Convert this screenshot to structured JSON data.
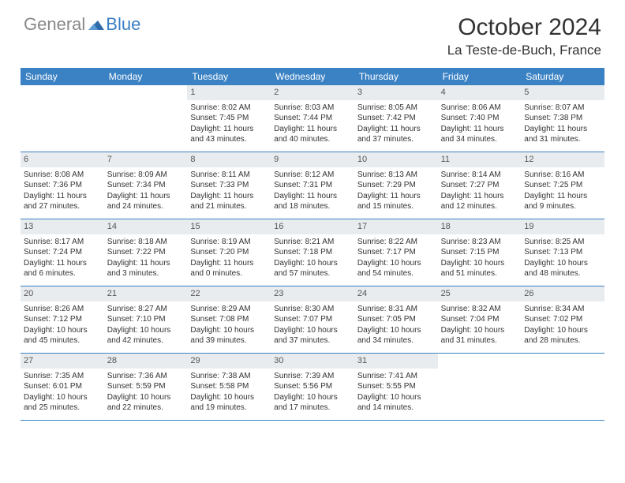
{
  "logo": {
    "general": "General",
    "blue": "Blue"
  },
  "title": "October 2024",
  "location": "La Teste-de-Buch, France",
  "colors": {
    "header_bg": "#3b82c4",
    "header_text": "#ffffff",
    "daynum_bg": "#e9ecef",
    "divider": "#3b82c4",
    "logo_gray": "#888888",
    "logo_blue": "#3b7fc4"
  },
  "weekdays": [
    "Sunday",
    "Monday",
    "Tuesday",
    "Wednesday",
    "Thursday",
    "Friday",
    "Saturday"
  ],
  "weeks": [
    [
      null,
      null,
      {
        "n": "1",
        "sunrise": "Sunrise: 8:02 AM",
        "sunset": "Sunset: 7:45 PM",
        "daylight": "Daylight: 11 hours and 43 minutes."
      },
      {
        "n": "2",
        "sunrise": "Sunrise: 8:03 AM",
        "sunset": "Sunset: 7:44 PM",
        "daylight": "Daylight: 11 hours and 40 minutes."
      },
      {
        "n": "3",
        "sunrise": "Sunrise: 8:05 AM",
        "sunset": "Sunset: 7:42 PM",
        "daylight": "Daylight: 11 hours and 37 minutes."
      },
      {
        "n": "4",
        "sunrise": "Sunrise: 8:06 AM",
        "sunset": "Sunset: 7:40 PM",
        "daylight": "Daylight: 11 hours and 34 minutes."
      },
      {
        "n": "5",
        "sunrise": "Sunrise: 8:07 AM",
        "sunset": "Sunset: 7:38 PM",
        "daylight": "Daylight: 11 hours and 31 minutes."
      }
    ],
    [
      {
        "n": "6",
        "sunrise": "Sunrise: 8:08 AM",
        "sunset": "Sunset: 7:36 PM",
        "daylight": "Daylight: 11 hours and 27 minutes."
      },
      {
        "n": "7",
        "sunrise": "Sunrise: 8:09 AM",
        "sunset": "Sunset: 7:34 PM",
        "daylight": "Daylight: 11 hours and 24 minutes."
      },
      {
        "n": "8",
        "sunrise": "Sunrise: 8:11 AM",
        "sunset": "Sunset: 7:33 PM",
        "daylight": "Daylight: 11 hours and 21 minutes."
      },
      {
        "n": "9",
        "sunrise": "Sunrise: 8:12 AM",
        "sunset": "Sunset: 7:31 PM",
        "daylight": "Daylight: 11 hours and 18 minutes."
      },
      {
        "n": "10",
        "sunrise": "Sunrise: 8:13 AM",
        "sunset": "Sunset: 7:29 PM",
        "daylight": "Daylight: 11 hours and 15 minutes."
      },
      {
        "n": "11",
        "sunrise": "Sunrise: 8:14 AM",
        "sunset": "Sunset: 7:27 PM",
        "daylight": "Daylight: 11 hours and 12 minutes."
      },
      {
        "n": "12",
        "sunrise": "Sunrise: 8:16 AM",
        "sunset": "Sunset: 7:25 PM",
        "daylight": "Daylight: 11 hours and 9 minutes."
      }
    ],
    [
      {
        "n": "13",
        "sunrise": "Sunrise: 8:17 AM",
        "sunset": "Sunset: 7:24 PM",
        "daylight": "Daylight: 11 hours and 6 minutes."
      },
      {
        "n": "14",
        "sunrise": "Sunrise: 8:18 AM",
        "sunset": "Sunset: 7:22 PM",
        "daylight": "Daylight: 11 hours and 3 minutes."
      },
      {
        "n": "15",
        "sunrise": "Sunrise: 8:19 AM",
        "sunset": "Sunset: 7:20 PM",
        "daylight": "Daylight: 11 hours and 0 minutes."
      },
      {
        "n": "16",
        "sunrise": "Sunrise: 8:21 AM",
        "sunset": "Sunset: 7:18 PM",
        "daylight": "Daylight: 10 hours and 57 minutes."
      },
      {
        "n": "17",
        "sunrise": "Sunrise: 8:22 AM",
        "sunset": "Sunset: 7:17 PM",
        "daylight": "Daylight: 10 hours and 54 minutes."
      },
      {
        "n": "18",
        "sunrise": "Sunrise: 8:23 AM",
        "sunset": "Sunset: 7:15 PM",
        "daylight": "Daylight: 10 hours and 51 minutes."
      },
      {
        "n": "19",
        "sunrise": "Sunrise: 8:25 AM",
        "sunset": "Sunset: 7:13 PM",
        "daylight": "Daylight: 10 hours and 48 minutes."
      }
    ],
    [
      {
        "n": "20",
        "sunrise": "Sunrise: 8:26 AM",
        "sunset": "Sunset: 7:12 PM",
        "daylight": "Daylight: 10 hours and 45 minutes."
      },
      {
        "n": "21",
        "sunrise": "Sunrise: 8:27 AM",
        "sunset": "Sunset: 7:10 PM",
        "daylight": "Daylight: 10 hours and 42 minutes."
      },
      {
        "n": "22",
        "sunrise": "Sunrise: 8:29 AM",
        "sunset": "Sunset: 7:08 PM",
        "daylight": "Daylight: 10 hours and 39 minutes."
      },
      {
        "n": "23",
        "sunrise": "Sunrise: 8:30 AM",
        "sunset": "Sunset: 7:07 PM",
        "daylight": "Daylight: 10 hours and 37 minutes."
      },
      {
        "n": "24",
        "sunrise": "Sunrise: 8:31 AM",
        "sunset": "Sunset: 7:05 PM",
        "daylight": "Daylight: 10 hours and 34 minutes."
      },
      {
        "n": "25",
        "sunrise": "Sunrise: 8:32 AM",
        "sunset": "Sunset: 7:04 PM",
        "daylight": "Daylight: 10 hours and 31 minutes."
      },
      {
        "n": "26",
        "sunrise": "Sunrise: 8:34 AM",
        "sunset": "Sunset: 7:02 PM",
        "daylight": "Daylight: 10 hours and 28 minutes."
      }
    ],
    [
      {
        "n": "27",
        "sunrise": "Sunrise: 7:35 AM",
        "sunset": "Sunset: 6:01 PM",
        "daylight": "Daylight: 10 hours and 25 minutes."
      },
      {
        "n": "28",
        "sunrise": "Sunrise: 7:36 AM",
        "sunset": "Sunset: 5:59 PM",
        "daylight": "Daylight: 10 hours and 22 minutes."
      },
      {
        "n": "29",
        "sunrise": "Sunrise: 7:38 AM",
        "sunset": "Sunset: 5:58 PM",
        "daylight": "Daylight: 10 hours and 19 minutes."
      },
      {
        "n": "30",
        "sunrise": "Sunrise: 7:39 AM",
        "sunset": "Sunset: 5:56 PM",
        "daylight": "Daylight: 10 hours and 17 minutes."
      },
      {
        "n": "31",
        "sunrise": "Sunrise: 7:41 AM",
        "sunset": "Sunset: 5:55 PM",
        "daylight": "Daylight: 10 hours and 14 minutes."
      },
      null,
      null
    ]
  ]
}
